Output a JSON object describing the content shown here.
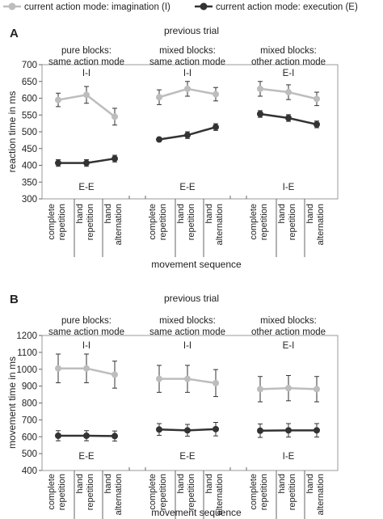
{
  "legend": [
    {
      "label": "current action mode: imagination (I)",
      "color": "#bdbdbd"
    },
    {
      "label": "current action mode: execution (E)",
      "color": "#333333"
    }
  ],
  "x_tick_labels": [
    [
      "complete",
      "repetition"
    ],
    [
      "hand",
      "repetition"
    ],
    [
      "hand",
      "alternation"
    ]
  ],
  "chart_data": [
    {
      "type": "line",
      "panel_letter": "A",
      "top_label": "previous trial",
      "xlabel": "movement sequence",
      "ylabel": "reaction time in ms",
      "ylim": [
        300,
        700
      ],
      "yticks": [
        300,
        350,
        400,
        450,
        500,
        550,
        600,
        650,
        700
      ],
      "groups": [
        {
          "title": [
            "pure blocks:",
            "same action mode"
          ],
          "imagination_label": "I-I",
          "execution_label": "E-E",
          "imagination": {
            "values": [
              595,
              610,
              545
            ],
            "errors": [
              20,
              25,
              25
            ]
          },
          "execution": {
            "values": [
              407,
              407,
              420
            ],
            "errors": [
              10,
              10,
              10
            ]
          }
        },
        {
          "title": [
            "mixed blocks:",
            "same action mode"
          ],
          "imagination_label": "I-I",
          "execution_label": "E-E",
          "imagination": {
            "values": [
              603,
              628,
              612
            ],
            "errors": [
              22,
              22,
              20
            ]
          },
          "execution": {
            "values": [
              477,
              490,
              514
            ],
            "errors": [
              6,
              10,
              10
            ]
          }
        },
        {
          "title": [
            "mixed blocks:",
            "other action mode"
          ],
          "imagination_label": "E-I",
          "execution_label": "I-E",
          "imagination": {
            "values": [
              628,
              618,
              598
            ],
            "errors": [
              22,
              22,
              20
            ]
          },
          "execution": {
            "values": [
              553,
              541,
              522
            ],
            "errors": [
              10,
              10,
              10
            ]
          }
        }
      ]
    },
    {
      "type": "line",
      "panel_letter": "B",
      "top_label": "previous trial",
      "xlabel": "movement sequence",
      "ylabel": "movement time in ms",
      "ylim": [
        400,
        1200
      ],
      "yticks": [
        400,
        500,
        600,
        700,
        800,
        900,
        1000,
        1100,
        1200
      ],
      "groups": [
        {
          "title": [
            "pure blocks:",
            "same action mode"
          ],
          "imagination_label": "I-I",
          "execution_label": "E-E",
          "imagination": {
            "values": [
              1005,
              1005,
              968
            ],
            "errors": [
              85,
              85,
              80
            ]
          },
          "execution": {
            "values": [
              606,
              606,
              604
            ],
            "errors": [
              30,
              30,
              30
            ]
          }
        },
        {
          "title": [
            "mixed blocks:",
            "same action mode"
          ],
          "imagination_label": "I-I",
          "execution_label": "E-E",
          "imagination": {
            "values": [
              943,
              943,
              918
            ],
            "errors": [
              80,
              80,
              80
            ]
          },
          "execution": {
            "values": [
              643,
              638,
              645
            ],
            "errors": [
              35,
              35,
              40
            ]
          }
        },
        {
          "title": [
            "mixed blocks:",
            "other action mode"
          ],
          "imagination_label": "E-I",
          "execution_label": "I-E",
          "imagination": {
            "values": [
              882,
              888,
              882
            ],
            "errors": [
              75,
              75,
              75
            ]
          },
          "execution": {
            "values": [
              636,
              638,
              638
            ],
            "errors": [
              40,
              40,
              40
            ]
          }
        }
      ]
    }
  ]
}
